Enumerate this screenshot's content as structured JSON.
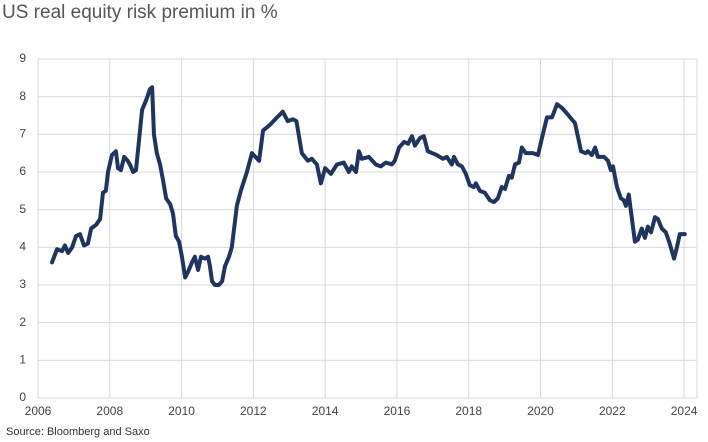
{
  "chart_data": {
    "type": "line",
    "title": "US real equity risk premium in %",
    "source": "Source: Bloomberg and Saxo",
    "color": "#1f3560",
    "x": [
      2006.39,
      2006.53,
      2006.67,
      2006.75,
      2006.84,
      2006.95,
      2007.06,
      2007.17,
      2007.28,
      2007.39,
      2007.48,
      2007.62,
      2007.73,
      2007.81,
      2007.89,
      2007.95,
      2008.06,
      2008.17,
      2008.23,
      2008.31,
      2008.4,
      2008.5,
      2008.56,
      2008.65,
      2008.73,
      2008.81,
      2008.9,
      2009.01,
      2009.12,
      2009.18,
      2009.23,
      2009.31,
      2009.4,
      2009.48,
      2009.57,
      2009.68,
      2009.76,
      2009.84,
      2009.93,
      2010.01,
      2010.1,
      2010.18,
      2010.29,
      2010.37,
      2010.46,
      2010.54,
      2010.65,
      2010.74,
      2010.79,
      2010.85,
      2010.93,
      2011.04,
      2011.13,
      2011.21,
      2011.32,
      2011.4,
      2011.54,
      2011.65,
      2011.82,
      2011.96,
      2012.16,
      2012.27,
      2012.46,
      2012.66,
      2012.82,
      2012.96,
      2013.1,
      2013.2,
      2013.35,
      2013.52,
      2013.63,
      2013.77,
      2013.88,
      2014.0,
      2014.16,
      2014.33,
      2014.52,
      2014.66,
      2014.74,
      2014.86,
      2014.94,
      2015.02,
      2015.22,
      2015.41,
      2015.55,
      2015.69,
      2015.86,
      2015.94,
      2016.06,
      2016.2,
      2016.31,
      2016.42,
      2016.5,
      2016.64,
      2016.75,
      2016.86,
      2017.11,
      2017.28,
      2017.39,
      2017.53,
      2017.59,
      2017.7,
      2017.81,
      2017.92,
      2018.03,
      2018.14,
      2018.2,
      2018.31,
      2018.45,
      2018.59,
      2018.7,
      2018.81,
      2018.92,
      2019.01,
      2019.12,
      2019.2,
      2019.29,
      2019.4,
      2019.48,
      2019.59,
      2019.79,
      2019.93,
      2020.04,
      2020.18,
      2020.32,
      2020.46,
      2020.6,
      2020.74,
      2020.87,
      2020.96,
      2021.04,
      2021.13,
      2021.26,
      2021.32,
      2021.43,
      2021.52,
      2021.6,
      2021.77,
      2021.88,
      2021.96,
      2022.02,
      2022.13,
      2022.24,
      2022.32,
      2022.38,
      2022.46,
      2022.63,
      2022.71,
      2022.82,
      2022.91,
      2022.99,
      2023.08,
      2023.19,
      2023.27,
      2023.38,
      2023.49,
      2023.6,
      2023.72,
      2023.8,
      2023.88,
      2024.02
    ],
    "values": [
      3.6,
      3.95,
      3.9,
      4.05,
      3.85,
      4.0,
      4.3,
      4.35,
      4.05,
      4.1,
      4.5,
      4.6,
      4.75,
      5.45,
      5.5,
      6.0,
      6.45,
      6.55,
      6.1,
      6.05,
      6.4,
      6.3,
      6.2,
      6.0,
      6.05,
      6.8,
      7.65,
      7.9,
      8.2,
      8.25,
      7.0,
      6.5,
      6.2,
      5.8,
      5.3,
      5.15,
      4.9,
      4.3,
      4.15,
      3.75,
      3.2,
      3.35,
      3.6,
      3.75,
      3.4,
      3.75,
      3.7,
      3.75,
      3.5,
      3.1,
      3.0,
      3.0,
      3.1,
      3.5,
      3.75,
      4.0,
      5.1,
      5.5,
      6.0,
      6.5,
      6.3,
      7.1,
      7.25,
      7.45,
      7.6,
      7.35,
      7.4,
      7.35,
      6.5,
      6.3,
      6.35,
      6.2,
      5.7,
      6.1,
      5.95,
      6.2,
      6.25,
      6.0,
      6.15,
      6.0,
      6.55,
      6.35,
      6.4,
      6.2,
      6.15,
      6.25,
      6.2,
      6.3,
      6.65,
      6.8,
      6.75,
      6.95,
      6.7,
      6.9,
      6.95,
      6.55,
      6.45,
      6.35,
      6.4,
      6.2,
      6.4,
      6.2,
      6.15,
      5.95,
      5.65,
      5.6,
      5.7,
      5.5,
      5.45,
      5.25,
      5.2,
      5.3,
      5.6,
      5.55,
      5.9,
      5.85,
      6.2,
      6.25,
      6.65,
      6.5,
      6.5,
      6.45,
      6.9,
      7.45,
      7.45,
      7.8,
      7.7,
      7.55,
      7.4,
      7.3,
      6.95,
      6.55,
      6.5,
      6.55,
      6.45,
      6.65,
      6.4,
      6.4,
      6.3,
      6.05,
      6.15,
      5.6,
      5.3,
      5.25,
      5.1,
      5.4,
      4.15,
      4.2,
      4.5,
      4.25,
      4.55,
      4.4,
      4.8,
      4.75,
      4.5,
      4.4,
      4.1,
      3.7,
      4.0,
      4.35,
      4.35
    ],
    "xlim": [
      2006,
      2024.36
    ],
    "xticks": [
      2006,
      2008,
      2010,
      2012,
      2014,
      2016,
      2018,
      2020,
      2022,
      2024
    ],
    "ylim": [
      0,
      9
    ],
    "yticks": [
      0,
      1,
      2,
      3,
      4,
      5,
      6,
      7,
      8,
      9
    ],
    "grid": true
  }
}
